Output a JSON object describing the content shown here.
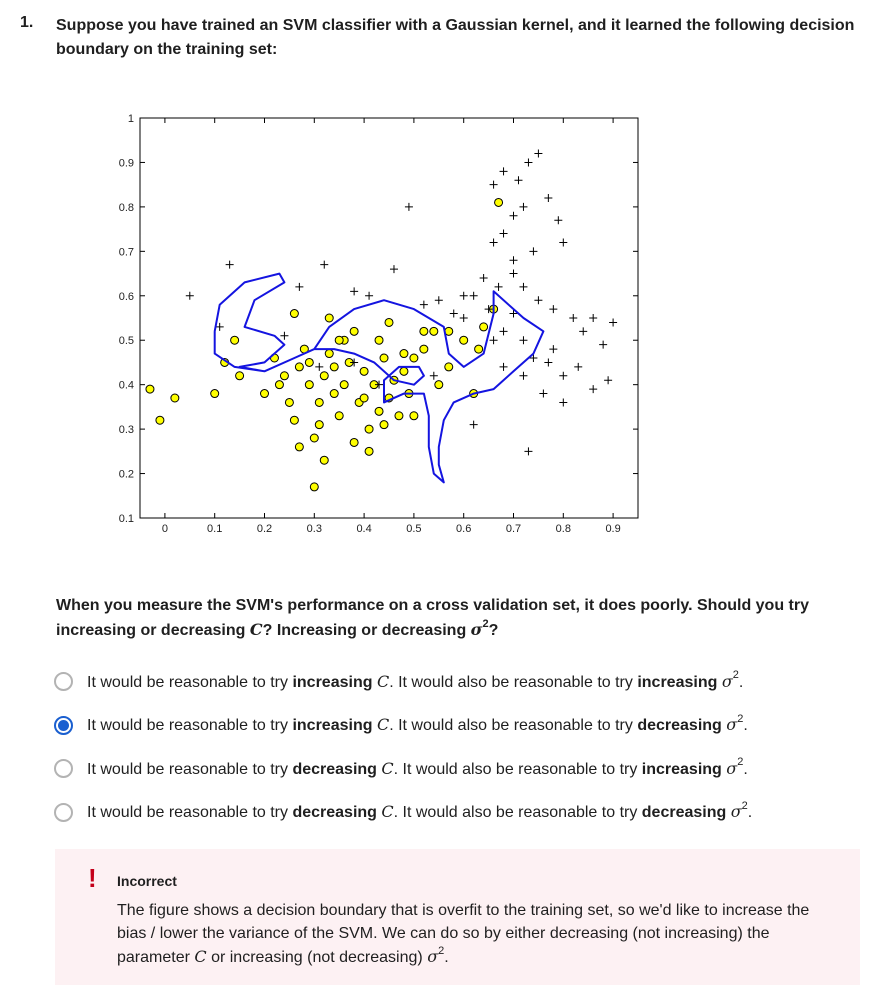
{
  "question": {
    "number": "1.",
    "title": "Suppose you have trained an SVM classifier with a Gaussian kernel, and it learned the following decision boundary on the training set:",
    "prompt_part1": "When you measure the SVM's performance on a cross validation set, it does poorly. Should you try increasing or decreasing ",
    "prompt_part2": "? Increasing or decreasing ",
    "prompt_part3": "?"
  },
  "symbols": {
    "C": "C",
    "sigma": "σ",
    "sq": "2"
  },
  "options": [
    {
      "p1": "It would be reasonable to try ",
      "w1": "increasing",
      "p2": ". It would also be reasonable to try ",
      "w2": "increasing",
      "p3": ".",
      "selected": false
    },
    {
      "p1": "It would be reasonable to try ",
      "w1": "increasing",
      "p2": ". It would also be reasonable to try ",
      "w2": "decreasing",
      "p3": ".",
      "selected": true
    },
    {
      "p1": "It would be reasonable to try ",
      "w1": "decreasing",
      "p2": ". It would also be reasonable to try ",
      "w2": "increasing",
      "p3": ".",
      "selected": false
    },
    {
      "p1": "It would be reasonable to try ",
      "w1": "decreasing",
      "p2": ". It would also be reasonable to try ",
      "w2": "decreasing",
      "p3": ".",
      "selected": false
    }
  ],
  "feedback": {
    "icon": "!",
    "icon_name": "exclamation-icon",
    "title": "Incorrect",
    "text1": "The figure shows a decision boundary that is overfit to the training set, so we'd like to increase the bias / lower the variance of the SVM. We can do so by either decreasing (not increasing) the parameter ",
    "text2": " or increasing (not decreasing) "
  },
  "colors": {
    "accent": "#1a5fd0",
    "error": "#c4001a",
    "feedback_bg": "#fdf1f3",
    "boundary": "#1414e0",
    "marker_fill": "#ffff00"
  },
  "chart_data": {
    "type": "scatter",
    "xlim": [
      -0.05,
      0.95
    ],
    "ylim": [
      0.1,
      1.0
    ],
    "x_ticks": [
      "0",
      "0.1",
      "0.2",
      "0.3",
      "0.4",
      "0.5",
      "0.6",
      "0.7",
      "0.8",
      "0.9"
    ],
    "y_ticks": [
      "0.1",
      "0.2",
      "0.3",
      "0.4",
      "0.5",
      "0.6",
      "0.7",
      "0.8",
      "0.9",
      "1"
    ],
    "x_tick_values": [
      0,
      0.1,
      0.2,
      0.3,
      0.4,
      0.5,
      0.6,
      0.7,
      0.8,
      0.9
    ],
    "y_tick_values": [
      0.1,
      0.2,
      0.3,
      0.4,
      0.5,
      0.6,
      0.7,
      0.8,
      0.9,
      1.0
    ],
    "series": [
      {
        "marker": "circle",
        "points": [
          [
            -0.03,
            0.39
          ],
          [
            -0.01,
            0.32
          ],
          [
            0.02,
            0.37
          ],
          [
            0.1,
            0.38
          ],
          [
            0.12,
            0.45
          ],
          [
            0.14,
            0.5
          ],
          [
            0.15,
            0.42
          ],
          [
            0.2,
            0.38
          ],
          [
            0.22,
            0.46
          ],
          [
            0.24,
            0.42
          ],
          [
            0.25,
            0.36
          ],
          [
            0.26,
            0.32
          ],
          [
            0.27,
            0.44
          ],
          [
            0.28,
            0.48
          ],
          [
            0.29,
            0.4
          ],
          [
            0.3,
            0.28
          ],
          [
            0.31,
            0.36
          ],
          [
            0.32,
            0.42
          ],
          [
            0.33,
            0.47
          ],
          [
            0.34,
            0.38
          ],
          [
            0.35,
            0.33
          ],
          [
            0.36,
            0.4
          ],
          [
            0.37,
            0.45
          ],
          [
            0.38,
            0.52
          ],
          [
            0.39,
            0.36
          ],
          [
            0.4,
            0.43
          ],
          [
            0.41,
            0.3
          ],
          [
            0.42,
            0.4
          ],
          [
            0.43,
            0.34
          ],
          [
            0.44,
            0.46
          ],
          [
            0.45,
            0.37
          ],
          [
            0.46,
            0.41
          ],
          [
            0.47,
            0.33
          ],
          [
            0.48,
            0.43
          ],
          [
            0.49,
            0.38
          ],
          [
            0.5,
            0.46
          ],
          [
            0.52,
            0.48
          ],
          [
            0.54,
            0.52
          ],
          [
            0.55,
            0.4
          ],
          [
            0.57,
            0.44
          ],
          [
            0.6,
            0.5
          ],
          [
            0.62,
            0.38
          ],
          [
            0.3,
            0.17
          ],
          [
            0.32,
            0.23
          ],
          [
            0.26,
            0.56
          ],
          [
            0.33,
            0.55
          ],
          [
            0.36,
            0.5
          ],
          [
            0.29,
            0.45
          ],
          [
            0.23,
            0.4
          ],
          [
            0.31,
            0.31
          ],
          [
            0.38,
            0.27
          ],
          [
            0.41,
            0.25
          ],
          [
            0.44,
            0.31
          ],
          [
            0.5,
            0.33
          ],
          [
            0.52,
            0.52
          ],
          [
            0.57,
            0.52
          ],
          [
            0.63,
            0.48
          ],
          [
            0.64,
            0.53
          ],
          [
            0.66,
            0.57
          ],
          [
            0.43,
            0.5
          ],
          [
            0.45,
            0.54
          ],
          [
            0.4,
            0.37
          ],
          [
            0.34,
            0.44
          ],
          [
            0.67,
            0.81
          ],
          [
            0.27,
            0.26
          ],
          [
            0.35,
            0.5
          ],
          [
            0.48,
            0.47
          ]
        ]
      },
      {
        "marker": "plus",
        "points": [
          [
            0.05,
            0.6
          ],
          [
            0.11,
            0.53
          ],
          [
            0.13,
            0.67
          ],
          [
            0.24,
            0.51
          ],
          [
            0.27,
            0.62
          ],
          [
            0.32,
            0.67
          ],
          [
            0.38,
            0.61
          ],
          [
            0.41,
            0.6
          ],
          [
            0.46,
            0.66
          ],
          [
            0.52,
            0.58
          ],
          [
            0.55,
            0.59
          ],
          [
            0.58,
            0.56
          ],
          [
            0.6,
            0.55
          ],
          [
            0.62,
            0.6
          ],
          [
            0.65,
            0.57
          ],
          [
            0.66,
            0.72
          ],
          [
            0.68,
            0.74
          ],
          [
            0.7,
            0.78
          ],
          [
            0.72,
            0.8
          ],
          [
            0.66,
            0.85
          ],
          [
            0.68,
            0.88
          ],
          [
            0.71,
            0.86
          ],
          [
            0.73,
            0.9
          ],
          [
            0.75,
            0.92
          ],
          [
            0.77,
            0.82
          ],
          [
            0.79,
            0.77
          ],
          [
            0.8,
            0.72
          ],
          [
            0.74,
            0.7
          ],
          [
            0.7,
            0.65
          ],
          [
            0.72,
            0.62
          ],
          [
            0.75,
            0.59
          ],
          [
            0.78,
            0.57
          ],
          [
            0.82,
            0.55
          ],
          [
            0.84,
            0.52
          ],
          [
            0.86,
            0.55
          ],
          [
            0.9,
            0.54
          ],
          [
            0.72,
            0.5
          ],
          [
            0.74,
            0.46
          ],
          [
            0.77,
            0.45
          ],
          [
            0.8,
            0.42
          ],
          [
            0.83,
            0.44
          ],
          [
            0.86,
            0.39
          ],
          [
            0.89,
            0.41
          ],
          [
            0.76,
            0.38
          ],
          [
            0.8,
            0.36
          ],
          [
            0.73,
            0.25
          ],
          [
            0.62,
            0.31
          ],
          [
            0.68,
            0.52
          ],
          [
            0.7,
            0.56
          ],
          [
            0.49,
            0.8
          ],
          [
            0.64,
            0.64
          ],
          [
            0.7,
            0.68
          ],
          [
            0.66,
            0.5
          ],
          [
            0.68,
            0.44
          ],
          [
            0.72,
            0.42
          ],
          [
            0.54,
            0.42
          ],
          [
            0.43,
            0.4
          ],
          [
            0.38,
            0.45
          ],
          [
            0.31,
            0.44
          ],
          [
            0.6,
            0.6
          ],
          [
            0.67,
            0.62
          ],
          [
            0.88,
            0.49
          ],
          [
            0.78,
            0.48
          ]
        ]
      }
    ],
    "boundary": [
      [
        0.1,
        0.52
      ],
      [
        0.11,
        0.58
      ],
      [
        0.16,
        0.63
      ],
      [
        0.23,
        0.65
      ],
      [
        0.24,
        0.63
      ],
      [
        0.18,
        0.59
      ],
      [
        0.16,
        0.53
      ],
      [
        0.22,
        0.51
      ],
      [
        0.24,
        0.49
      ],
      [
        0.2,
        0.45
      ],
      [
        0.15,
        0.44
      ],
      [
        0.2,
        0.43
      ],
      [
        0.26,
        0.46
      ],
      [
        0.3,
        0.48
      ],
      [
        0.33,
        0.53
      ],
      [
        0.38,
        0.57
      ],
      [
        0.44,
        0.59
      ],
      [
        0.5,
        0.57
      ],
      [
        0.56,
        0.53
      ],
      [
        0.57,
        0.47
      ],
      [
        0.6,
        0.44
      ],
      [
        0.64,
        0.47
      ],
      [
        0.66,
        0.56
      ],
      [
        0.66,
        0.61
      ],
      [
        0.72,
        0.55
      ],
      [
        0.76,
        0.52
      ],
      [
        0.74,
        0.47
      ],
      [
        0.7,
        0.43
      ],
      [
        0.66,
        0.39
      ],
      [
        0.62,
        0.38
      ],
      [
        0.58,
        0.36
      ],
      [
        0.56,
        0.32
      ],
      [
        0.55,
        0.26
      ],
      [
        0.55,
        0.22
      ],
      [
        0.56,
        0.18
      ],
      [
        0.54,
        0.2
      ],
      [
        0.53,
        0.26
      ],
      [
        0.53,
        0.33
      ],
      [
        0.52,
        0.38
      ],
      [
        0.48,
        0.38
      ],
      [
        0.44,
        0.36
      ],
      [
        0.44,
        0.41
      ],
      [
        0.47,
        0.44
      ],
      [
        0.51,
        0.44
      ],
      [
        0.52,
        0.42
      ],
      [
        0.5,
        0.4
      ],
      [
        0.46,
        0.41
      ],
      [
        0.42,
        0.45
      ],
      [
        0.38,
        0.47
      ],
      [
        0.34,
        0.48
      ],
      [
        0.3,
        0.48
      ],
      [
        0.26,
        0.46
      ],
      [
        0.2,
        0.43
      ],
      [
        0.14,
        0.44
      ],
      [
        0.1,
        0.47
      ],
      [
        0.1,
        0.52
      ]
    ]
  }
}
